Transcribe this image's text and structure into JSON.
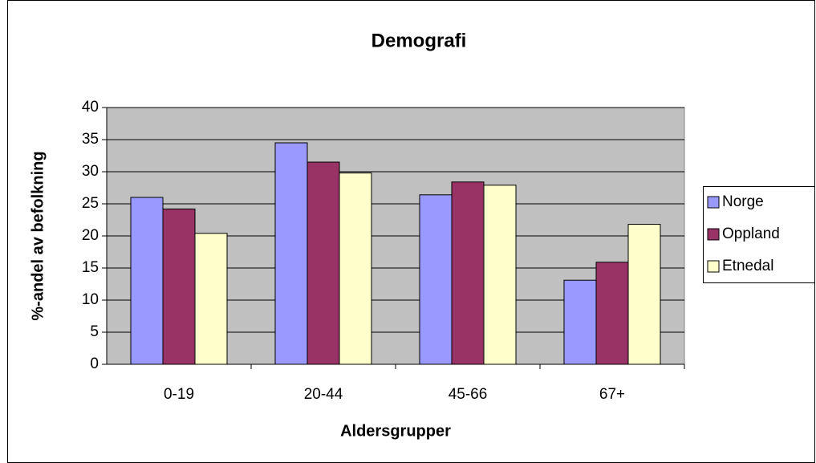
{
  "chart_data": {
    "type": "bar",
    "title": "Demografi",
    "x_label": "Aldersgrupper",
    "y_label": "%-andel av befolkning",
    "categories": [
      "0-19",
      "20-44",
      "45-66",
      "67+"
    ],
    "series": [
      {
        "name": "Norge",
        "color": "#9999ff",
        "values": [
          26,
          34.5,
          26.4,
          13.1
        ]
      },
      {
        "name": "Oppland",
        "color": "#993366",
        "values": [
          24.2,
          31.5,
          28.4,
          15.9
        ]
      },
      {
        "name": "Etnedal",
        "color": "#ffffcc",
        "values": [
          20.4,
          29.8,
          27.9,
          21.8
        ]
      }
    ],
    "ylim": [
      0,
      40
    ],
    "yticks": [
      0,
      5,
      10,
      15,
      20,
      25,
      30,
      35,
      40
    ],
    "grid": true,
    "legend": "right",
    "plot_background": "#c0c0c0"
  }
}
